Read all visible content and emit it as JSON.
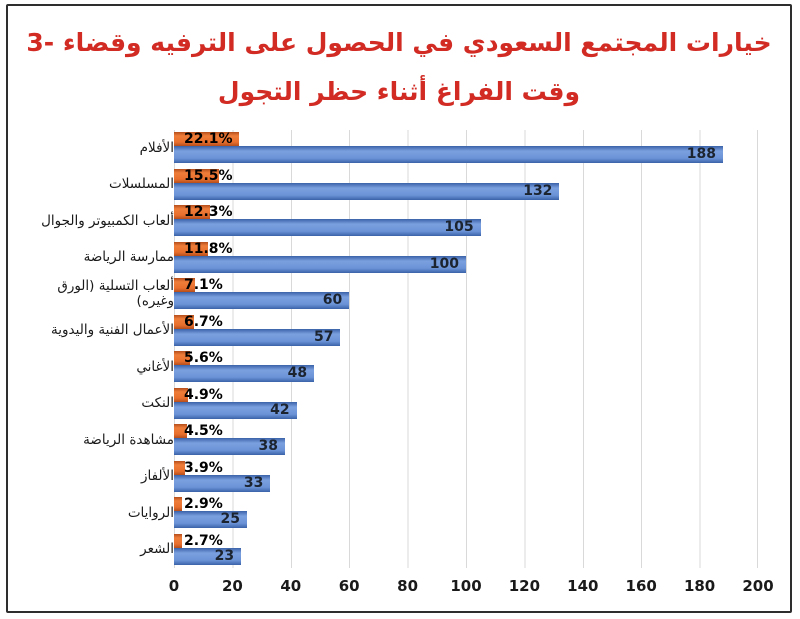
{
  "chart_data": {
    "type": "bar",
    "orientation": "horizontal",
    "title": {
      "number_prefix": "3-",
      "line1": "خيارات المجتمع السعودي في الحصول على الترفيه وقضاء",
      "line2": "وقت الفراغ أثناء حظر التجول",
      "color": "#d12b24"
    },
    "categories": [
      "الأفلام",
      "المسلسلات",
      "ألعاب الكمبيوتر والجوال",
      "ممارسة الرياضة",
      "ألعاب التسلية (الورق وغيره)",
      "الأعمال الفنية واليدوية",
      "الأغاني",
      "النكت",
      "مشاهدة الرياضة",
      "الألفاز",
      "الروايات",
      "الشعر"
    ],
    "series": [
      {
        "name": "count",
        "color": "#6b93d6",
        "values": [
          188,
          132,
          105,
          100,
          60,
          57,
          48,
          42,
          38,
          33,
          25,
          23
        ],
        "labels": [
          "188",
          "132",
          "105",
          "100",
          "60",
          "57",
          "48",
          "42",
          "38",
          "33",
          "25",
          "23"
        ]
      },
      {
        "name": "percent",
        "color": "#e96f2d",
        "values": [
          22.1,
          15.5,
          12.3,
          11.8,
          7.1,
          6.7,
          5.6,
          4.9,
          4.5,
          3.9,
          2.9,
          2.7
        ],
        "labels": [
          "22.1%",
          "15.5%",
          "12.3%",
          "11.8%",
          "7.1%",
          "6.7%",
          "5.6%",
          "4.9%",
          "4.5%",
          "3.9%",
          "2.9%",
          "2.7%"
        ]
      }
    ],
    "xlim": [
      0,
      200
    ],
    "x_ticks": [
      "0",
      "20",
      "40",
      "60",
      "80",
      "100",
      "120",
      "140",
      "160",
      "180",
      "200"
    ],
    "grid": true,
    "gridline_color": "#d9d9d9",
    "legend": "none"
  }
}
